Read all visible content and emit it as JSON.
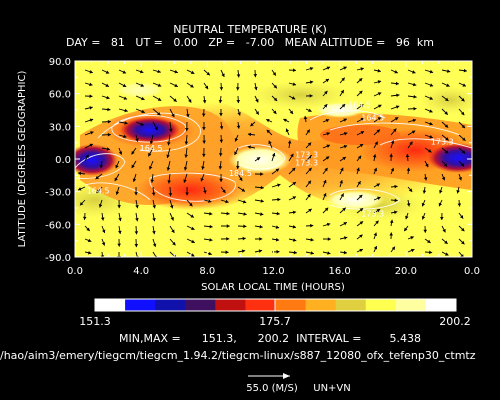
{
  "header": {
    "title": "NEUTRAL TEMPERATURE (K)",
    "subtitle": "DAY =   81   UT =   0.00   ZP =   -7.00   MEAN ALTITUDE =   96  km"
  },
  "chart_data": {
    "type": "heatmap",
    "title": "NEUTRAL TEMPERATURE (K)",
    "xlabel": "SOLAR LOCAL TIME (HOURS)",
    "ylabel": "LATITUDE (DEGREES GEOGRAPHIC)",
    "xlim": [
      0,
      24
    ],
    "ylim": [
      -90,
      90
    ],
    "x_ticks": [
      "0.0",
      "4.0",
      "8.0",
      "12.0",
      "16.0",
      "20.0",
      "0.0"
    ],
    "y_ticks": [
      "90.0",
      "60.0",
      "30.0",
      "0.0",
      "-30.0",
      "-60.0",
      "-90.0"
    ],
    "colorbar": {
      "min_label": "151.3",
      "mid_label": "175.7",
      "max_label": "200.2",
      "colors": [
        "#ffffff",
        "#1010ff",
        "#1010aa",
        "#401060",
        "#c01010",
        "#ff3010",
        "#ff7a10",
        "#ffb020",
        "#e0d040",
        "#ffff50",
        "#ffffa0",
        "#ffffff"
      ]
    },
    "contour_labels": [
      {
        "text": "164.5",
        "x": 17.2,
        "y": 50
      },
      {
        "text": "164.5",
        "x": 18.0,
        "y": 38
      },
      {
        "text": "173.3",
        "x": 22.2,
        "y": 16
      },
      {
        "text": "164.5",
        "x": 4.6,
        "y": 10
      },
      {
        "text": "173.3",
        "x": 14.0,
        "y": 4
      },
      {
        "text": "184.5",
        "x": 10.0,
        "y": -13
      },
      {
        "text": "173.3",
        "x": 14.0,
        "y": -3
      },
      {
        "text": "164.5",
        "x": 1.4,
        "y": -29
      },
      {
        "text": "173.3",
        "x": 18.0,
        "y": -50
      }
    ],
    "vector_reference": {
      "label": "55.0 (M/S)",
      "field": "UN+VN"
    }
  },
  "footer": {
    "minmax": "MIN,MAX =      151.3,      200.2  INTERVAL =        5.438",
    "path": "/hao/aim3/emery/tiegcm/tiegcm_1.94.2/tiegcm-linux/s887_12080_ofx_tefenp30_ctmtz"
  }
}
